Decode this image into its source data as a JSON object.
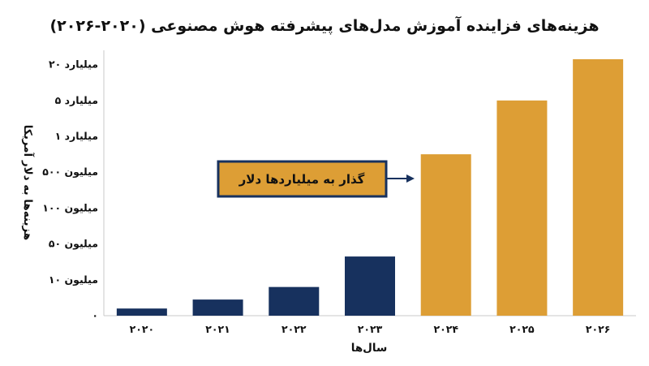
{
  "chart_data": {
    "type": "bar",
    "title": "هزینه‌های فزاینده آموزش مدل‌های پیشرفته هوش مصنوعی (۲۰۲۰-۲۰۲۶)",
    "xlabel": "سال‌ها",
    "ylabel": "هزینه‌ها به دلار آمریکا",
    "categories": [
      "۲۰۲۰",
      "۲۰۲۱",
      "۲۰۲۲",
      "۲۰۲۳",
      "۲۰۲۴",
      "۲۰۲۵",
      "۲۰۲۶"
    ],
    "y_ticks": [
      "۰",
      "۱۰ میلیون",
      "۵۰ میلیون",
      "۱۰۰ میلیون",
      "۵۰۰ میلیون",
      "۱ میلیارد",
      "۵ میلیارد",
      "۲۰ میلیارد"
    ],
    "y_scale": "categorical (non-linear steps)",
    "values_tick_index": [
      0.2,
      0.45,
      0.8,
      1.65,
      4.5,
      6.0,
      7.15
    ],
    "series_colors": {
      "historical": "#17315e",
      "projected": "#dd9e35"
    },
    "projected_from": "۲۰۲۴",
    "annotation": {
      "text": "گذار به میلیاردها دلار",
      "points_to": "۲۰۲۴",
      "box_color": "#dd9e35",
      "border_color": "#17315e"
    },
    "grid": false,
    "legend": "none"
  }
}
